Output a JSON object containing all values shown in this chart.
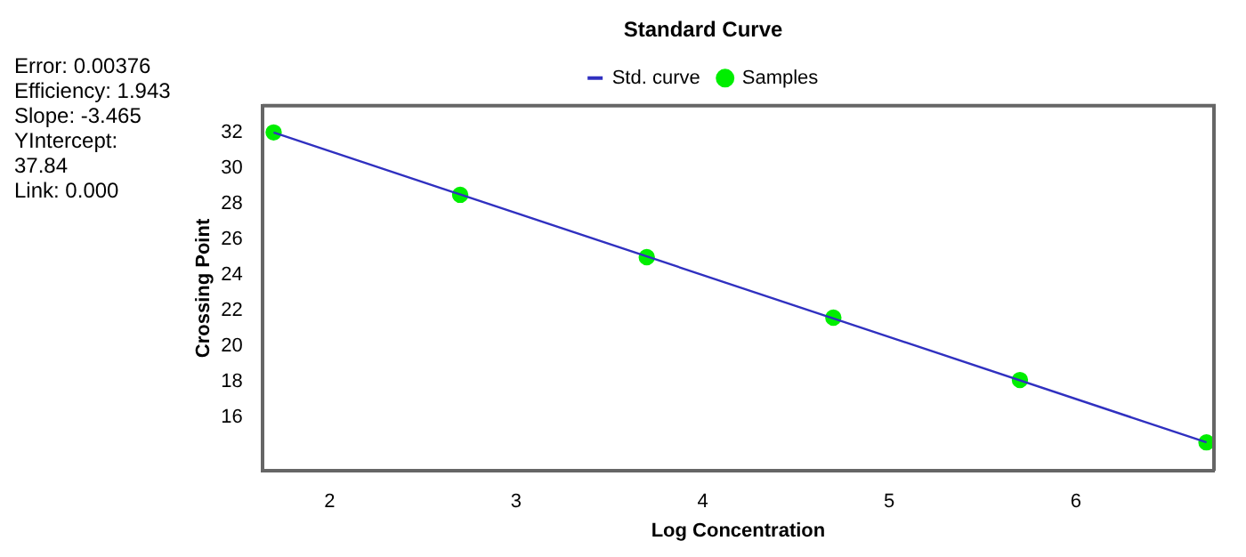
{
  "chart_data": {
    "type": "line",
    "title": "Standard Curve",
    "xlabel": "Log Concentration",
    "ylabel": "Crossing Point",
    "annotations": [
      "Error: 0.00376",
      "Efficiency: 1.943",
      "Slope: -3.465",
      "YIntercept:",
      "37.84",
      "Link: 0.000"
    ],
    "series": [
      {
        "name": "Std. curve",
        "color": "#3030c0",
        "marker": "none",
        "x": [
          1.7,
          6.7
        ],
        "values": [
          32.0,
          14.6
        ]
      },
      {
        "name": "Samples",
        "type": "scatter",
        "color": "#00ee00",
        "marker": "circle",
        "x": [
          1.7,
          2.7,
          3.7,
          4.7,
          5.7,
          6.7
        ],
        "values": [
          32.0,
          28.5,
          25.0,
          21.6,
          18.1,
          14.6
        ]
      }
    ],
    "xlim": [
      1.64,
      6.74
    ],
    "xticks": [
      2,
      3,
      4,
      5,
      6
    ],
    "ylim": [
      13,
      33.5
    ],
    "yticks": [
      16,
      18,
      20,
      22,
      24,
      26,
      28,
      30,
      32
    ],
    "grid": false,
    "legend": "top"
  }
}
